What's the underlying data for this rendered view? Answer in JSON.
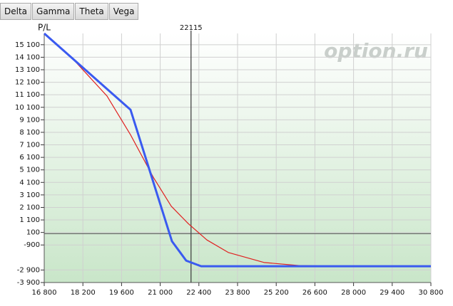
{
  "tabs": [
    "Delta",
    "Gamma",
    "Theta",
    "Vega"
  ],
  "chart_data": {
    "type": "line",
    "y_label": "P/L",
    "watermark": "option.ru",
    "marker_x": 22115,
    "xlim": [
      16800,
      30800
    ],
    "ylim": [
      -3900,
      16000
    ],
    "xticks": [
      {
        "value": 16800,
        "label": "16 800"
      },
      {
        "value": 18200,
        "label": "18 200"
      },
      {
        "value": 19600,
        "label": "19 600"
      },
      {
        "value": 21000,
        "label": "21 000"
      },
      {
        "value": 22400,
        "label": "22 400"
      },
      {
        "value": 23800,
        "label": "23 800"
      },
      {
        "value": 25200,
        "label": "25 200"
      },
      {
        "value": 26600,
        "label": "26 600"
      },
      {
        "value": 28000,
        "label": "28 000"
      },
      {
        "value": 29400,
        "label": "29 400"
      },
      {
        "value": 30800,
        "label": "30 800"
      }
    ],
    "yticks": [
      {
        "value": 15100,
        "label": "15 100"
      },
      {
        "value": 14100,
        "label": "14 100"
      },
      {
        "value": 13100,
        "label": "13 100"
      },
      {
        "value": 12100,
        "label": "12 100"
      },
      {
        "value": 11100,
        "label": "11 100"
      },
      {
        "value": 10100,
        "label": "10 100"
      },
      {
        "value": 9100,
        "label": "9 100"
      },
      {
        "value": 8100,
        "label": "8 100"
      },
      {
        "value": 7100,
        "label": "7 100"
      },
      {
        "value": 6100,
        "label": "6 100"
      },
      {
        "value": 5100,
        "label": "5 100"
      },
      {
        "value": 4100,
        "label": "4 100"
      },
      {
        "value": 3100,
        "label": "3 100"
      },
      {
        "value": 2100,
        "label": "2 100"
      },
      {
        "value": 1100,
        "label": "1 100"
      },
      100,
      -900,
      {
        "value": -2900,
        "label": "-2 900"
      },
      {
        "value": -3900,
        "label": "-3 900"
      }
    ],
    "grid": true,
    "series": [
      {
        "color": "#e02020",
        "x": [
          16800,
          17782,
          19073,
          19925,
          20752,
          21398,
          22018,
          22690,
          23465,
          24756,
          26048,
          27597,
          30800
        ],
        "values": [
          16000,
          14100,
          11000,
          7900,
          4500,
          2200,
          800,
          -500,
          -1500,
          -2300,
          -2550,
          -2600,
          -2600
        ]
      },
      {
        "color": "#3a5af0",
        "x": [
          16800,
          19925,
          21424,
          21940,
          22483,
          30800
        ],
        "values": [
          16000,
          9900,
          -600,
          -2150,
          -2600,
          -2600
        ]
      }
    ]
  }
}
